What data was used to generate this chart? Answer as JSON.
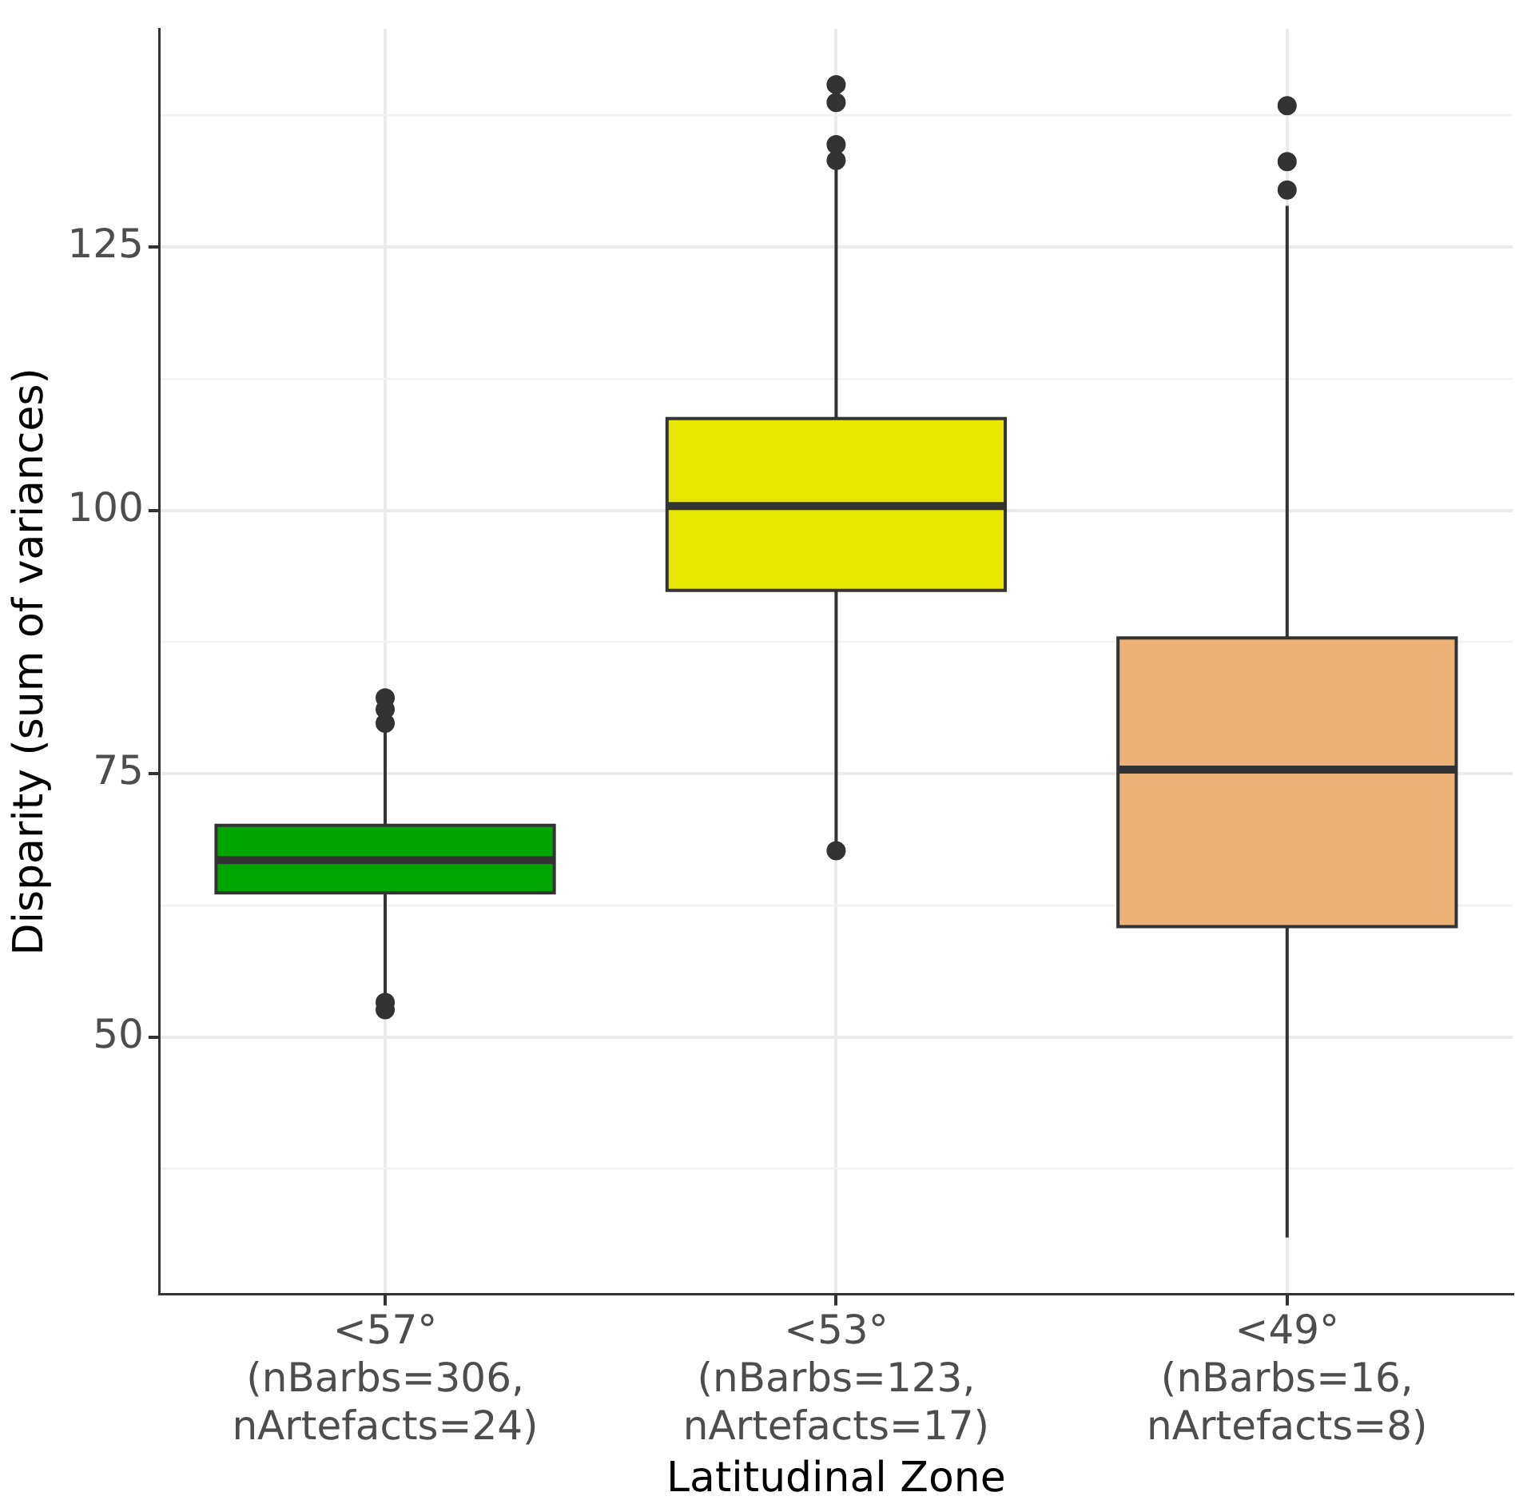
{
  "chart_data": {
    "type": "box",
    "xlabel": "Latitudinal Zone",
    "ylabel": "Disparity (sum of variances)",
    "categories": [
      "<57°\n(nBarbs=306,\nnArtefacts=24)",
      "<53°\n(nBarbs=123,\nnArtefacts=17)",
      "<49°\n(nBarbs=16,\nnArtefacts=8)"
    ],
    "colors": [
      "#00a600",
      "#e6e600",
      "#ecb176"
    ],
    "boxes": [
      {
        "low": 53.6,
        "q1": 63.7,
        "median": 66.8,
        "q3": 70.1,
        "high": 79.5,
        "outliers": [
          82.2,
          81.1,
          79.8,
          53.3,
          52.6
        ]
      },
      {
        "low": 68.5,
        "q1": 92.4,
        "median": 100.4,
        "q3": 108.7,
        "high": 132.5,
        "outliers": [
          140.4,
          138.7,
          134.7,
          133.2,
          67.7
        ]
      },
      {
        "low": 31.0,
        "q1": 60.5,
        "median": 75.4,
        "q3": 87.9,
        "high": 128.9,
        "outliers": [
          138.4,
          133.1,
          130.4
        ]
      }
    ],
    "ylim": [
      25.6,
      145.7
    ],
    "yticks": [
      {
        "value": 37.5,
        "label": null
      },
      50,
      {
        "value": 62.5,
        "label": null
      },
      75,
      {
        "value": 87.5,
        "label": null
      },
      100,
      {
        "value": 112.5,
        "label": null
      },
      125,
      {
        "value": 137.5,
        "label": null
      }
    ],
    "grid": true
  }
}
